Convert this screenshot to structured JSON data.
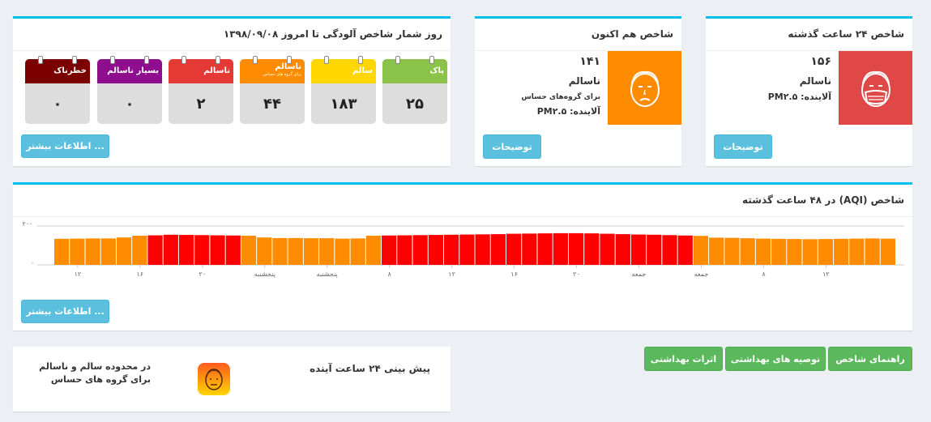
{
  "countdown": {
    "title": "روز شمار شاخص آلودگی تا امروز ۱۳۹۸/۰۹/۰۸",
    "more_button": "اطلاعات بیشتر ...",
    "cards": [
      {
        "label": "پاک",
        "sub": "",
        "value": "۲۵",
        "color": "#8bc34a"
      },
      {
        "label": "سالم",
        "sub": "",
        "value": "۱۸۳",
        "color": "#ffd600"
      },
      {
        "label": "ناسالم",
        "sub": "برای گروه های حساس",
        "value": "۴۴",
        "color": "#ff8c00"
      },
      {
        "label": "ناسالم",
        "sub": "",
        "value": "۲",
        "color": "#e53935"
      },
      {
        "label": "بسیار ناسالم",
        "sub": "",
        "value": "۰",
        "color": "#8e0e8e"
      },
      {
        "label": "خطرناک",
        "sub": "",
        "value": "۰",
        "color": "#7b0000"
      }
    ]
  },
  "now_index": {
    "title": "شاخص هم اکنون",
    "value": "۱۴۱",
    "status": "ناسالم",
    "group": "برای گروه‌های حساس",
    "pollutant": "آلاینده: PM۲.۵",
    "button": "توضیحات",
    "color": "#ff8c00",
    "icon": "sad-face-icon"
  },
  "day_index": {
    "title": "شاخص ۲۴ ساعت گذشته",
    "value": "۱۵۶",
    "status": "ناسالم",
    "pollutant": "آلاینده: PM۲.۵",
    "button": "توضیحات",
    "color": "#e04848",
    "icon": "mask-face-icon"
  },
  "chart_box": {
    "title": "شاخص (AQI) در ۴۸ ساعت گذشته",
    "more_button": "اطلاعات بیشتر ..."
  },
  "chart_data": {
    "type": "bar",
    "ylim": [
      0,
      200
    ],
    "y_ticks": [
      "۲۰۰",
      "۰"
    ],
    "x_ticks": [
      "۱۲",
      "۱۶",
      "۲۰",
      "پنجشنبه",
      "پنجشنبه",
      "۸",
      "۱۲",
      "۱۶",
      "۲۰",
      "جمعه",
      "جمعه",
      "۸",
      "۱۲"
    ],
    "values": [
      134,
      135,
      136,
      136,
      141,
      150,
      152,
      155,
      154,
      153,
      152,
      151,
      150,
      141,
      138,
      138,
      137,
      137,
      135,
      136,
      150,
      151,
      152,
      153,
      154,
      155,
      156,
      157,
      158,
      160,
      161,
      162,
      163,
      163,
      162,
      160,
      158,
      156,
      155,
      153,
      151,
      149,
      140,
      139,
      137,
      135,
      134,
      133,
      132,
      133,
      134,
      135,
      136,
      135
    ],
    "colors": {
      "unhealthy_sensitive": "#ff8c00",
      "unhealthy": "#ff0000"
    },
    "threshold": 150
  },
  "forecast": {
    "title": "پیش بینی ۲۴ ساعت آینده",
    "desc_line1": "در محدوده سالم و ناسالم",
    "desc_line2": "برای گروه های حساس",
    "icon": "face-icon"
  },
  "actions": [
    {
      "label": "راهنمای شاخص",
      "name": "index-guide-button"
    },
    {
      "label": "توصیه های بهداشتی",
      "name": "health-advice-button"
    },
    {
      "label": "اثرات بهداشتی",
      "name": "health-effects-button"
    }
  ]
}
